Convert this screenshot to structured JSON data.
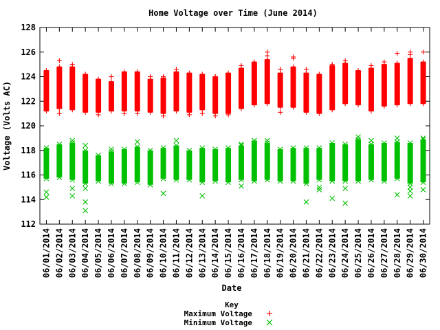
{
  "chart_data": {
    "type": "box",
    "title": "Home Voltage over Time (June 2014)",
    "xlabel": "Date",
    "ylabel": "Voltage (Volts AC)",
    "ylim": [
      112,
      128
    ],
    "yticks": [
      112,
      114,
      116,
      118,
      120,
      122,
      124,
      126,
      128
    ],
    "grid": false,
    "legend_position": "bottom-center",
    "legend_title": "Key",
    "categories": [
      "06/01/2014",
      "06/02/2014",
      "06/03/2014",
      "06/04/2014",
      "06/05/2014",
      "06/06/2014",
      "06/07/2014",
      "06/08/2014",
      "06/09/2014",
      "06/10/2014",
      "06/11/2014",
      "06/12/2014",
      "06/13/2014",
      "06/14/2014",
      "06/15/2014",
      "06/16/2014",
      "06/17/2014",
      "06/18/2014",
      "06/19/2014",
      "06/20/2014",
      "06/21/2014",
      "06/22/2014",
      "06/23/2014",
      "06/24/2014",
      "06/25/2014",
      "06/26/2014",
      "06/27/2014",
      "06/28/2014",
      "06/29/2014",
      "06/30/2014"
    ],
    "series": [
      {
        "name": "Maximum Voltage",
        "marker": "plus",
        "color": "#ff0000",
        "low": [
          121.2,
          121.4,
          121.3,
          121.1,
          121.1,
          121.2,
          121.2,
          121.2,
          121.1,
          121.0,
          121.2,
          121.1,
          121.3,
          121.0,
          121.0,
          121.4,
          121.7,
          121.8,
          121.5,
          121.5,
          121.1,
          121.0,
          121.3,
          121.8,
          121.7,
          121.2,
          121.6,
          121.7,
          121.8,
          121.8
        ],
        "high": [
          124.5,
          124.8,
          124.8,
          124.2,
          123.8,
          123.6,
          124.4,
          124.4,
          123.8,
          123.9,
          124.4,
          124.3,
          124.2,
          124.0,
          124.3,
          124.7,
          125.2,
          125.4,
          124.3,
          124.8,
          124.3,
          124.2,
          124.9,
          125.1,
          124.5,
          124.7,
          125.0,
          125.1,
          125.5,
          125.2
        ],
        "outliers_high": [
          [],
          [
            125.3
          ],
          [
            125.0
          ],
          [],
          [],
          [
            124.0
          ],
          [],
          [],
          [
            124.0
          ],
          [
            124.0
          ],
          [
            124.6
          ],
          [],
          [],
          [
            124.0
          ],
          [],
          [
            124.9
          ],
          [],
          [
            126.0,
            125.7
          ],
          [
            124.6
          ],
          [
            125.5,
            125.6
          ],
          [
            124.6
          ],
          [],
          [
            125.0
          ],
          [
            125.3
          ],
          [],
          [
            124.9
          ],
          [
            125.2
          ],
          [
            125.9
          ],
          [
            125.8,
            126.0
          ],
          [
            126.0
          ]
        ],
        "outliers_low": [
          [],
          [
            121.0
          ],
          [],
          [],
          [
            120.9
          ],
          [],
          [
            121.0
          ],
          [
            121.0
          ],
          [],
          [
            120.8
          ],
          [],
          [
            120.9
          ],
          [
            121.0
          ],
          [
            120.8
          ],
          [
            120.9
          ],
          [],
          [],
          [],
          [
            121.1
          ],
          [],
          [],
          [],
          [],
          [],
          [],
          [],
          [],
          [],
          [],
          []
        ]
      },
      {
        "name": "Minimum Voltage",
        "marker": "cross",
        "color": "#00c000",
        "low": [
          115.7,
          115.8,
          115.6,
          115.3,
          115.5,
          115.3,
          115.3,
          115.4,
          115.2,
          115.7,
          115.6,
          115.6,
          115.4,
          115.5,
          115.4,
          115.6,
          115.5,
          115.6,
          115.5,
          115.5,
          115.3,
          115.6,
          115.5,
          115.5,
          115.5,
          115.6,
          115.5,
          115.7,
          115.3,
          115.4
        ],
        "high": [
          118.2,
          118.5,
          118.6,
          118.0,
          117.6,
          117.9,
          118.1,
          118.3,
          118.0,
          118.2,
          118.4,
          118.0,
          118.2,
          118.1,
          118.2,
          118.4,
          118.8,
          118.6,
          118.1,
          118.2,
          118.2,
          118.2,
          118.6,
          118.5,
          118.9,
          118.5,
          118.6,
          118.7,
          118.6,
          118.9
        ],
        "outliers_low": [
          [
            114.6,
            114.2
          ],
          [],
          [
            114.9,
            114.3
          ],
          [
            113.8,
            113.1,
            114.9
          ],
          [],
          [],
          [],
          [],
          [],
          [
            114.5
          ],
          [],
          [],
          [
            114.3
          ],
          [],
          [],
          [
            115.1
          ],
          [],
          [],
          [],
          [],
          [
            113.8
          ],
          [
            114.8,
            115.0
          ],
          [
            114.1
          ],
          [
            113.7,
            114.9
          ],
          [],
          [],
          [],
          [
            114.4
          ],
          [
            114.3,
            114.7,
            115.0
          ],
          [
            114.8
          ]
        ],
        "outliers_high": [
          [],
          [],
          [
            118.8
          ],
          [
            118.4
          ],
          [],
          [
            118.1
          ],
          [],
          [
            118.7
          ],
          [],
          [],
          [
            118.8
          ],
          [],
          [],
          [],
          [],
          [
            118.5
          ],
          [],
          [
            118.8
          ],
          [],
          [],
          [],
          [],
          [],
          [],
          [
            119.1
          ],
          [
            118.8
          ],
          [],
          [
            119.0
          ],
          [],
          [
            119.0
          ]
        ]
      }
    ]
  }
}
